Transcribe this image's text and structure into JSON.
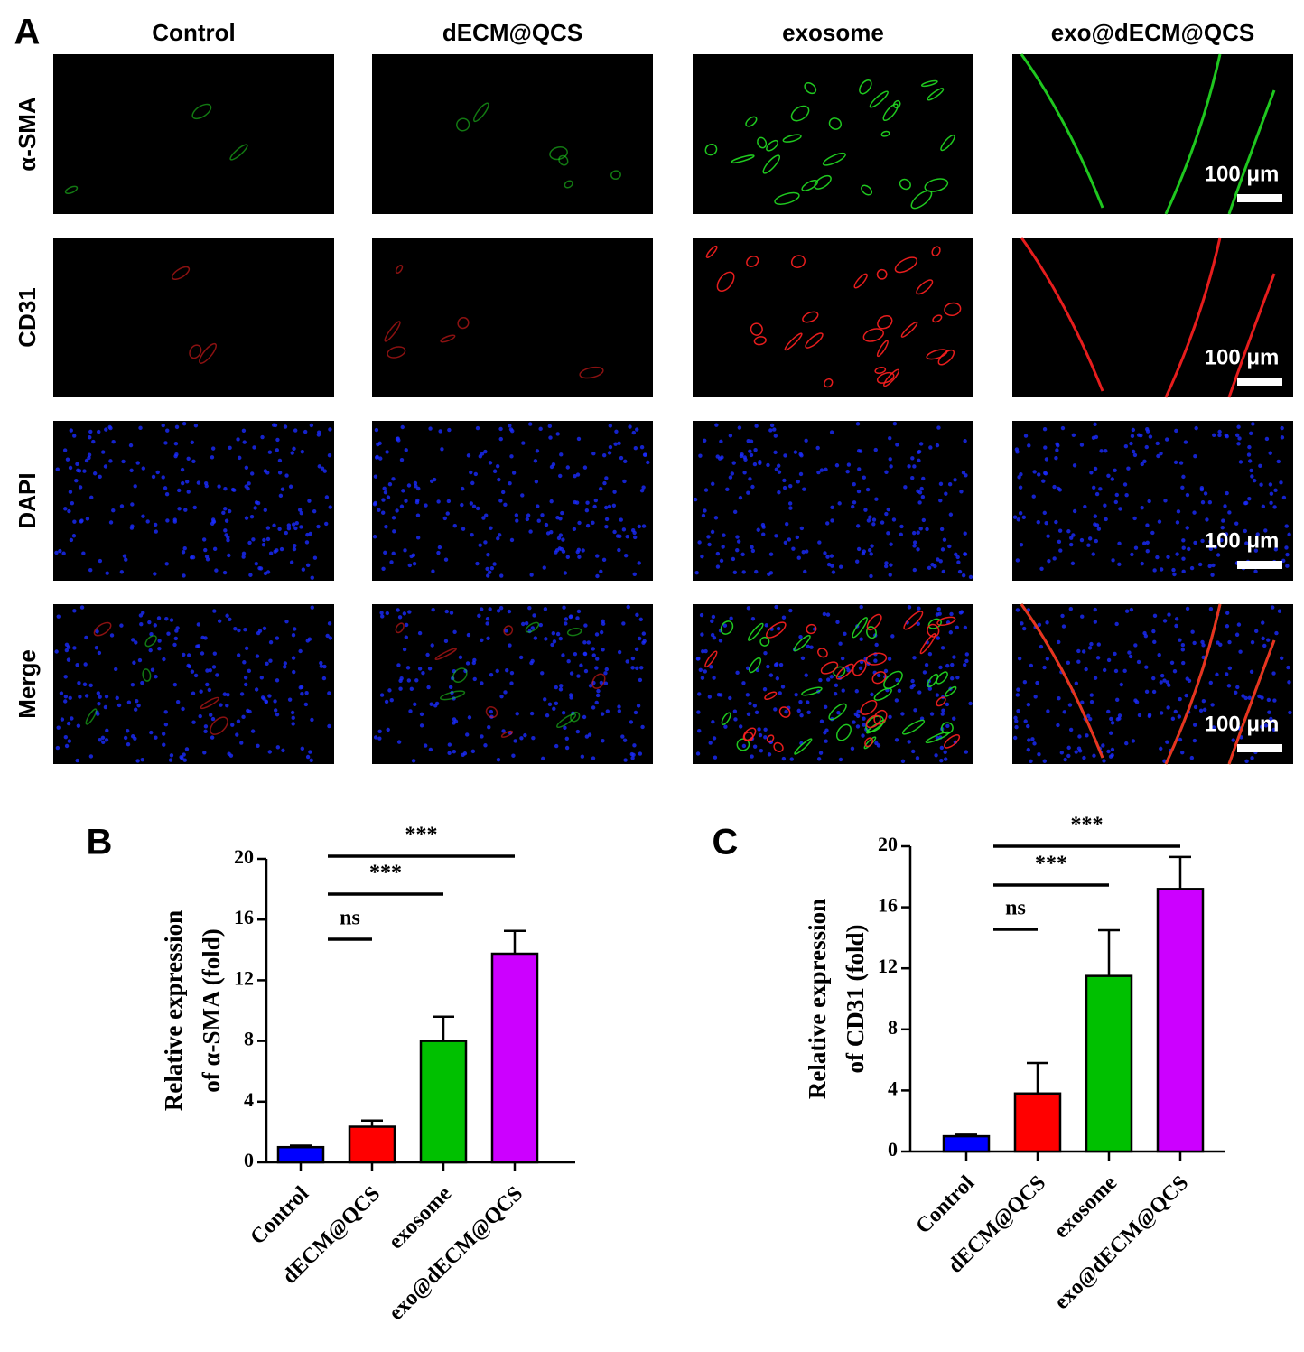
{
  "panel_a": {
    "label": "A",
    "columns": [
      "Control",
      "dECM@QCS",
      "exosome",
      "exo@dECM@QCS"
    ],
    "rows": [
      "α-SMA",
      "CD31",
      "DAPI",
      "Merge"
    ],
    "scale_bar": "100 μm"
  },
  "chart_data": [
    {
      "type": "bar",
      "label": "B",
      "ylabel": [
        "Relative expression",
        "of α-SMA (fold)"
      ],
      "categories": [
        "Control",
        "dECM@QCS",
        "exosome",
        "exo@dECM@QCS"
      ],
      "values": [
        1.0,
        2.35,
        8.0,
        13.75
      ],
      "errors": [
        0.1,
        0.4,
        1.6,
        1.5
      ],
      "colors": [
        "#0000ff",
        "#ff0000",
        "#00c000",
        "#cc00ff"
      ],
      "ylim": [
        0,
        20
      ],
      "yticks": [
        0,
        4,
        8,
        12,
        16,
        20
      ],
      "annotations": [
        "ns",
        "***",
        "***"
      ]
    },
    {
      "type": "bar",
      "label": "C",
      "ylabel": [
        "Relative expression",
        "of CD31 (fold)"
      ],
      "categories": [
        "Control",
        "dECM@QCS",
        "exosome",
        "exo@dECM@QCS"
      ],
      "values": [
        1.0,
        3.8,
        11.5,
        17.2
      ],
      "errors": [
        0.1,
        2.0,
        3.0,
        2.1
      ],
      "colors": [
        "#0000ff",
        "#ff0000",
        "#00c000",
        "#cc00ff"
      ],
      "ylim": [
        0,
        20
      ],
      "yticks": [
        0,
        4,
        8,
        12,
        16,
        20
      ],
      "annotations": [
        "ns",
        "***",
        "***"
      ]
    }
  ]
}
